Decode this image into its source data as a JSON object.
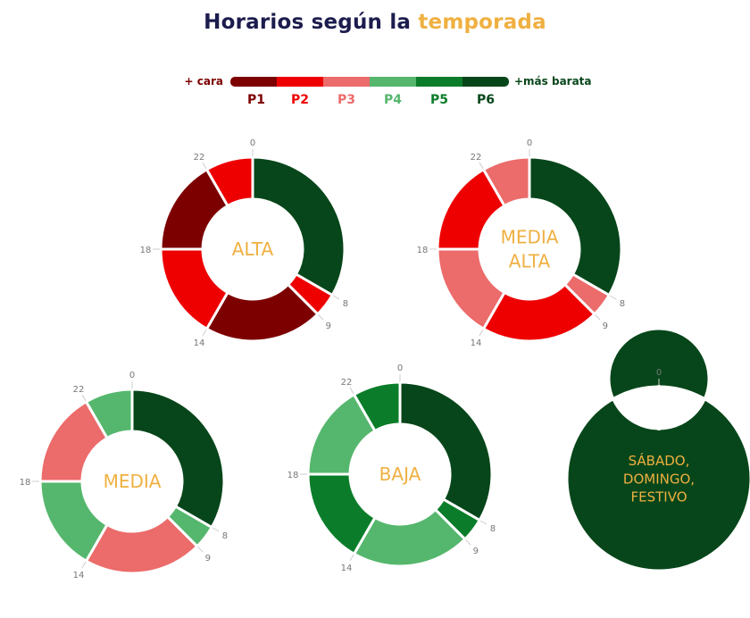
{
  "title": {
    "part1": "Horarios según la ",
    "part2": "temporada"
  },
  "colors": {
    "P1": "#7d0000",
    "P2": "#ee0000",
    "P3": "#ec6b6b",
    "P4": "#55b76d",
    "P5": "#0b7d2a",
    "P6": "#07461a",
    "title": "#1c1c4e",
    "accent": "#efb041",
    "tick": "#777777"
  },
  "legend": {
    "left_label": "+ cara",
    "right_label": "+más barata",
    "periods": [
      "P1",
      "P2",
      "P3",
      "P4",
      "P5",
      "P6"
    ]
  },
  "chart_data": [
    {
      "type": "donut",
      "center_label": [
        "ALTA"
      ],
      "unit": "hours",
      "tick_labels": [
        "0",
        "8",
        "9",
        "14",
        "18",
        "22"
      ],
      "segments": [
        {
          "start": 0,
          "end": 8,
          "period": "P6"
        },
        {
          "start": 8,
          "end": 9,
          "period": "P2"
        },
        {
          "start": 9,
          "end": 14,
          "period": "P1"
        },
        {
          "start": 14,
          "end": 18,
          "period": "P2"
        },
        {
          "start": 18,
          "end": 22,
          "period": "P1"
        },
        {
          "start": 22,
          "end": 24,
          "period": "P2"
        }
      ]
    },
    {
      "type": "donut",
      "center_label": [
        "MEDIA",
        "ALTA"
      ],
      "unit": "hours",
      "tick_labels": [
        "0",
        "8",
        "9",
        "14",
        "18",
        "22"
      ],
      "segments": [
        {
          "start": 0,
          "end": 8,
          "period": "P6"
        },
        {
          "start": 8,
          "end": 9,
          "period": "P3"
        },
        {
          "start": 9,
          "end": 14,
          "period": "P2"
        },
        {
          "start": 14,
          "end": 18,
          "period": "P3"
        },
        {
          "start": 18,
          "end": 22,
          "period": "P2"
        },
        {
          "start": 22,
          "end": 24,
          "period": "P3"
        }
      ]
    },
    {
      "type": "donut",
      "center_label": [
        "MEDIA"
      ],
      "unit": "hours",
      "tick_labels": [
        "0",
        "8",
        "9",
        "14",
        "18",
        "22"
      ],
      "segments": [
        {
          "start": 0,
          "end": 8,
          "period": "P6"
        },
        {
          "start": 8,
          "end": 9,
          "period": "P4"
        },
        {
          "start": 9,
          "end": 14,
          "period": "P3"
        },
        {
          "start": 14,
          "end": 18,
          "period": "P4"
        },
        {
          "start": 18,
          "end": 22,
          "period": "P3"
        },
        {
          "start": 22,
          "end": 24,
          "period": "P4"
        }
      ]
    },
    {
      "type": "donut",
      "center_label": [
        "BAJA"
      ],
      "unit": "hours",
      "tick_labels": [
        "0",
        "8",
        "9",
        "14",
        "18",
        "22"
      ],
      "segments": [
        {
          "start": 0,
          "end": 8,
          "period": "P6"
        },
        {
          "start": 8,
          "end": 9,
          "period": "P5"
        },
        {
          "start": 9,
          "end": 14,
          "period": "P4"
        },
        {
          "start": 14,
          "end": 18,
          "period": "P5"
        },
        {
          "start": 18,
          "end": 22,
          "period": "P4"
        },
        {
          "start": 22,
          "end": 24,
          "period": "P5"
        }
      ]
    },
    {
      "type": "donut",
      "center_label": [
        "SÁBADO,",
        "DOMINGO,",
        "FESTIVO"
      ],
      "unit": "hours",
      "tick_labels": [
        "0"
      ],
      "segments": [
        {
          "start": 0,
          "end": 24,
          "period": "P6"
        }
      ]
    }
  ]
}
